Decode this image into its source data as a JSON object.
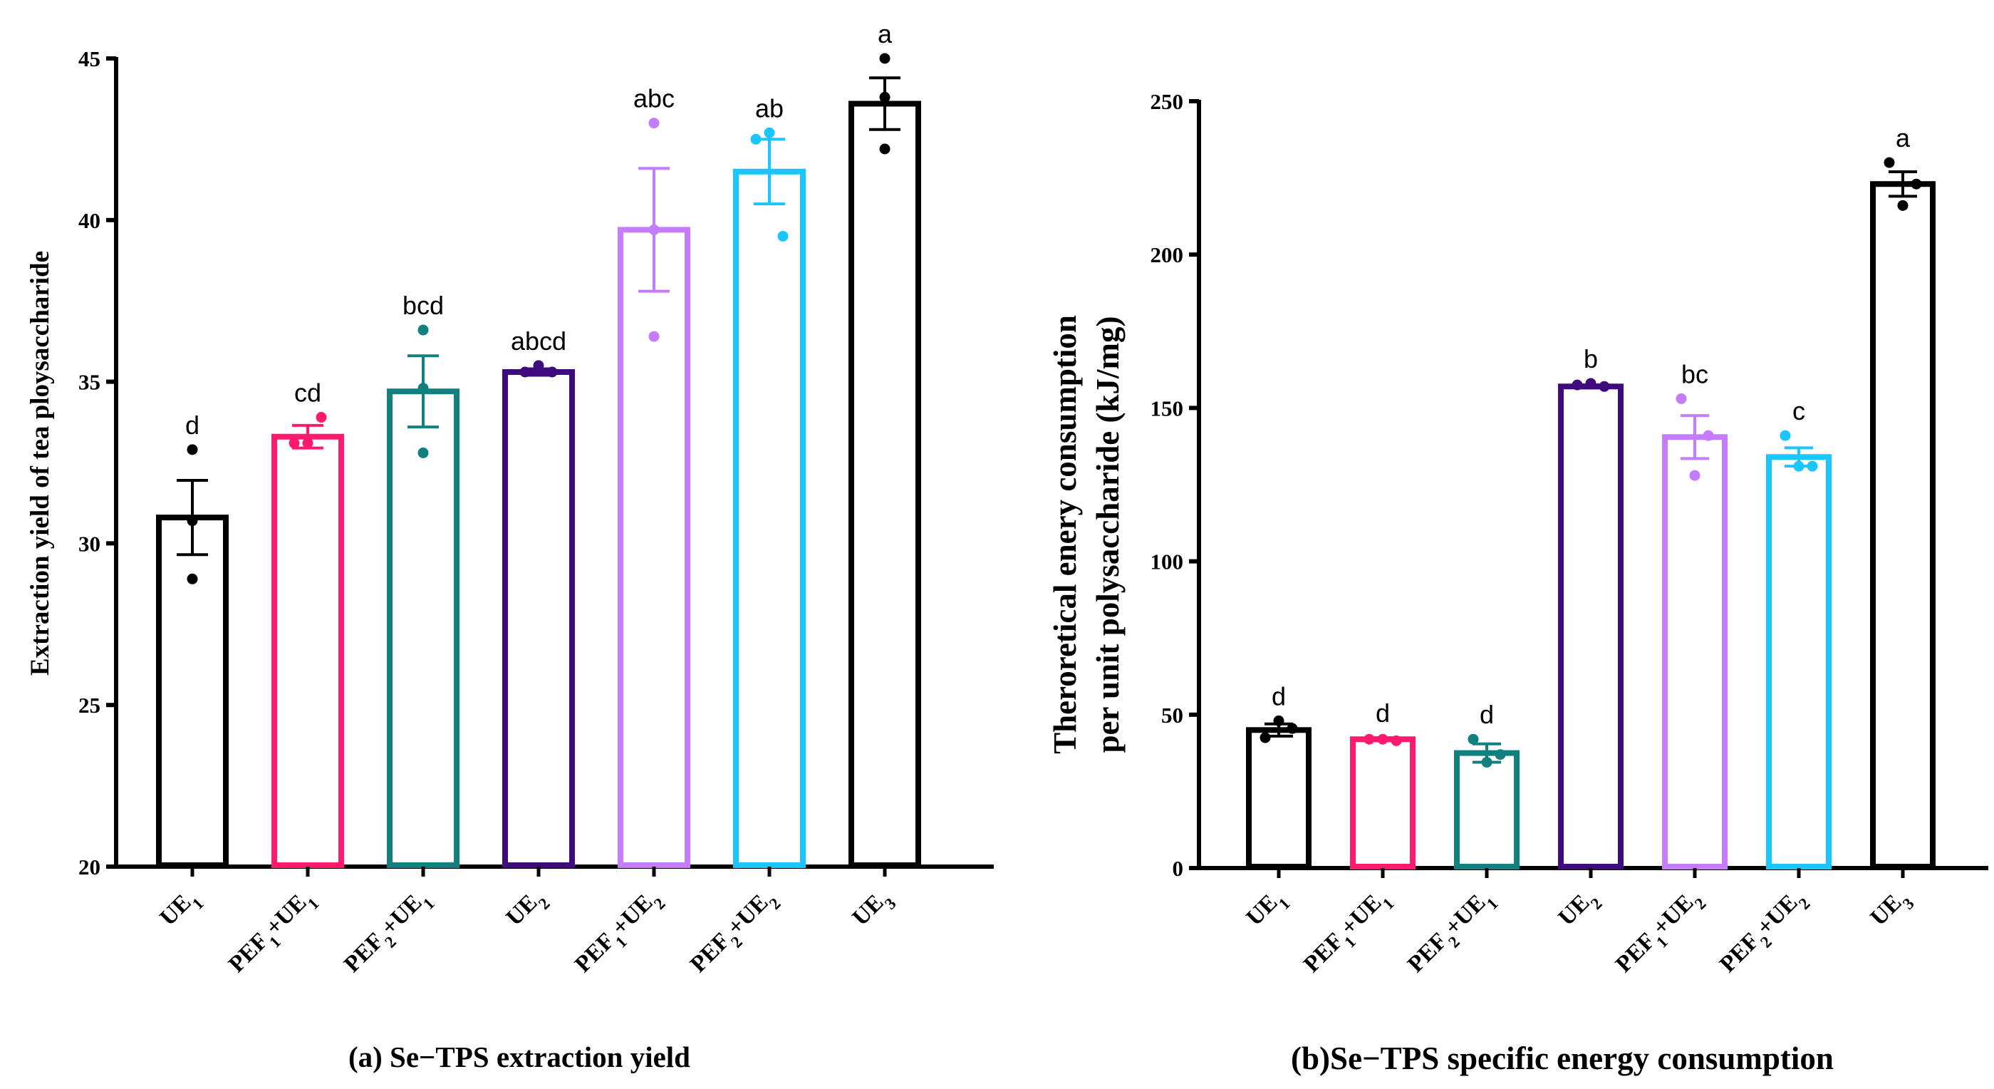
{
  "chart_data": [
    {
      "type": "bar",
      "id": "a",
      "title": "(a) Se−TPS extraction yield",
      "xlabel": "",
      "ylabel": "Extraction yield of tea ploysaccharide",
      "ylim": [
        20,
        45
      ],
      "yticks": [
        20,
        25,
        30,
        35,
        40,
        45
      ],
      "grid": false,
      "categories": [
        {
          "main": "UE",
          "sub": "1",
          "parts": [
            {
              "t": "UE"
            },
            {
              "t": "1",
              "sub": true
            }
          ]
        },
        {
          "main": "PEF1+UE1",
          "parts": [
            {
              "t": "PEF"
            },
            {
              "t": "1",
              "sub": true
            },
            {
              "t": "+UE"
            },
            {
              "t": "1",
              "sub": true
            }
          ]
        },
        {
          "main": "PEF2+UE1",
          "parts": [
            {
              "t": "PEF"
            },
            {
              "t": "2",
              "sub": true
            },
            {
              "t": "+UE"
            },
            {
              "t": "1",
              "sub": true
            }
          ]
        },
        {
          "main": "UE2",
          "parts": [
            {
              "t": "UE"
            },
            {
              "t": "2",
              "sub": true
            }
          ]
        },
        {
          "main": "PEF1+UE2",
          "parts": [
            {
              "t": "PEF"
            },
            {
              "t": "1",
              "sub": true
            },
            {
              "t": "+UE"
            },
            {
              "t": "2",
              "sub": true
            }
          ]
        },
        {
          "main": "PEF2+UE2",
          "parts": [
            {
              "t": "PEF"
            },
            {
              "t": "2",
              "sub": true
            },
            {
              "t": "+UE"
            },
            {
              "t": "2",
              "sub": true
            }
          ]
        },
        {
          "main": "UE3",
          "parts": [
            {
              "t": "UE"
            },
            {
              "t": "3",
              "sub": true
            }
          ]
        }
      ],
      "values": [
        30.8,
        33.3,
        34.7,
        35.3,
        39.7,
        41.5,
        43.6
      ],
      "errors": [
        1.15,
        0.35,
        1.1,
        0.1,
        1.9,
        1.0,
        0.8
      ],
      "points": [
        [
          32.9,
          30.7,
          28.9
        ],
        [
          33.1,
          33.1,
          33.9
        ],
        [
          36.6,
          34.8,
          32.8
        ],
        [
          35.3,
          35.5,
          35.3
        ],
        [
          43.0,
          39.7,
          36.4
        ],
        [
          42.5,
          42.7,
          39.5
        ],
        [
          45.0,
          43.8,
          42.2
        ]
      ],
      "significance": [
        "d",
        "cd",
        "bcd",
        "abcd",
        "abc",
        "ab",
        "a"
      ],
      "colors": [
        "#000000",
        "#ff1a6e",
        "#11807f",
        "#3e0a7e",
        "#c57cff",
        "#1ac6ff",
        "#000000"
      ]
    },
    {
      "type": "bar",
      "id": "b",
      "title": "(b)Se−TPS specific energy consumption",
      "xlabel": "",
      "ylabel_line1": "Theroretical enery consumption",
      "ylabel_line2": "per unit polysaccharide (kJ/mg)",
      "ylim": [
        0,
        250
      ],
      "yticks": [
        0,
        50,
        100,
        150,
        200,
        250
      ],
      "grid": false,
      "categories": [
        {
          "main": "UE1",
          "parts": [
            {
              "t": "UE"
            },
            {
              "t": "1",
              "sub": true
            }
          ]
        },
        {
          "main": "PEF1+UE1",
          "parts": [
            {
              "t": "PEF"
            },
            {
              "t": "1",
              "sub": true
            },
            {
              "t": "+UE"
            },
            {
              "t": "1",
              "sub": true
            }
          ]
        },
        {
          "main": "PEF2+UE1",
          "parts": [
            {
              "t": "PEF"
            },
            {
              "t": "2",
              "sub": true
            },
            {
              "t": "+UE"
            },
            {
              "t": "1",
              "sub": true
            }
          ]
        },
        {
          "main": "UE2",
          "parts": [
            {
              "t": "UE"
            },
            {
              "t": "2",
              "sub": true
            }
          ]
        },
        {
          "main": "PEF1+UE2",
          "parts": [
            {
              "t": "PEF"
            },
            {
              "t": "1",
              "sub": true
            },
            {
              "t": "+UE"
            },
            {
              "t": "2",
              "sub": true
            }
          ]
        },
        {
          "main": "PEF2+UE2",
          "parts": [
            {
              "t": "PEF"
            },
            {
              "t": "2",
              "sub": true
            },
            {
              "t": "+UE"
            },
            {
              "t": "2",
              "sub": true
            }
          ]
        },
        {
          "main": "UE3",
          "parts": [
            {
              "t": "UE"
            },
            {
              "t": "3",
              "sub": true
            }
          ]
        }
      ],
      "values": [
        45,
        42,
        37.5,
        157,
        140.5,
        134,
        223
      ],
      "errors": [
        2,
        0.5,
        3,
        0.5,
        7,
        3,
        4
      ],
      "points": [
        [
          42.5,
          48,
          45.5
        ],
        [
          42,
          42,
          41.5
        ],
        [
          42,
          34.5,
          37
        ],
        [
          157.5,
          158,
          157
        ],
        [
          153,
          128,
          141
        ],
        [
          141,
          131,
          131
        ],
        [
          230,
          216,
          223
        ]
      ],
      "significance": [
        "d",
        "d",
        "d",
        "b",
        "bc",
        "c",
        "a"
      ],
      "colors": [
        "#000000",
        "#ff1a6e",
        "#11807f",
        "#3e0a7e",
        "#c57cff",
        "#1ac6ff",
        "#000000"
      ]
    }
  ]
}
